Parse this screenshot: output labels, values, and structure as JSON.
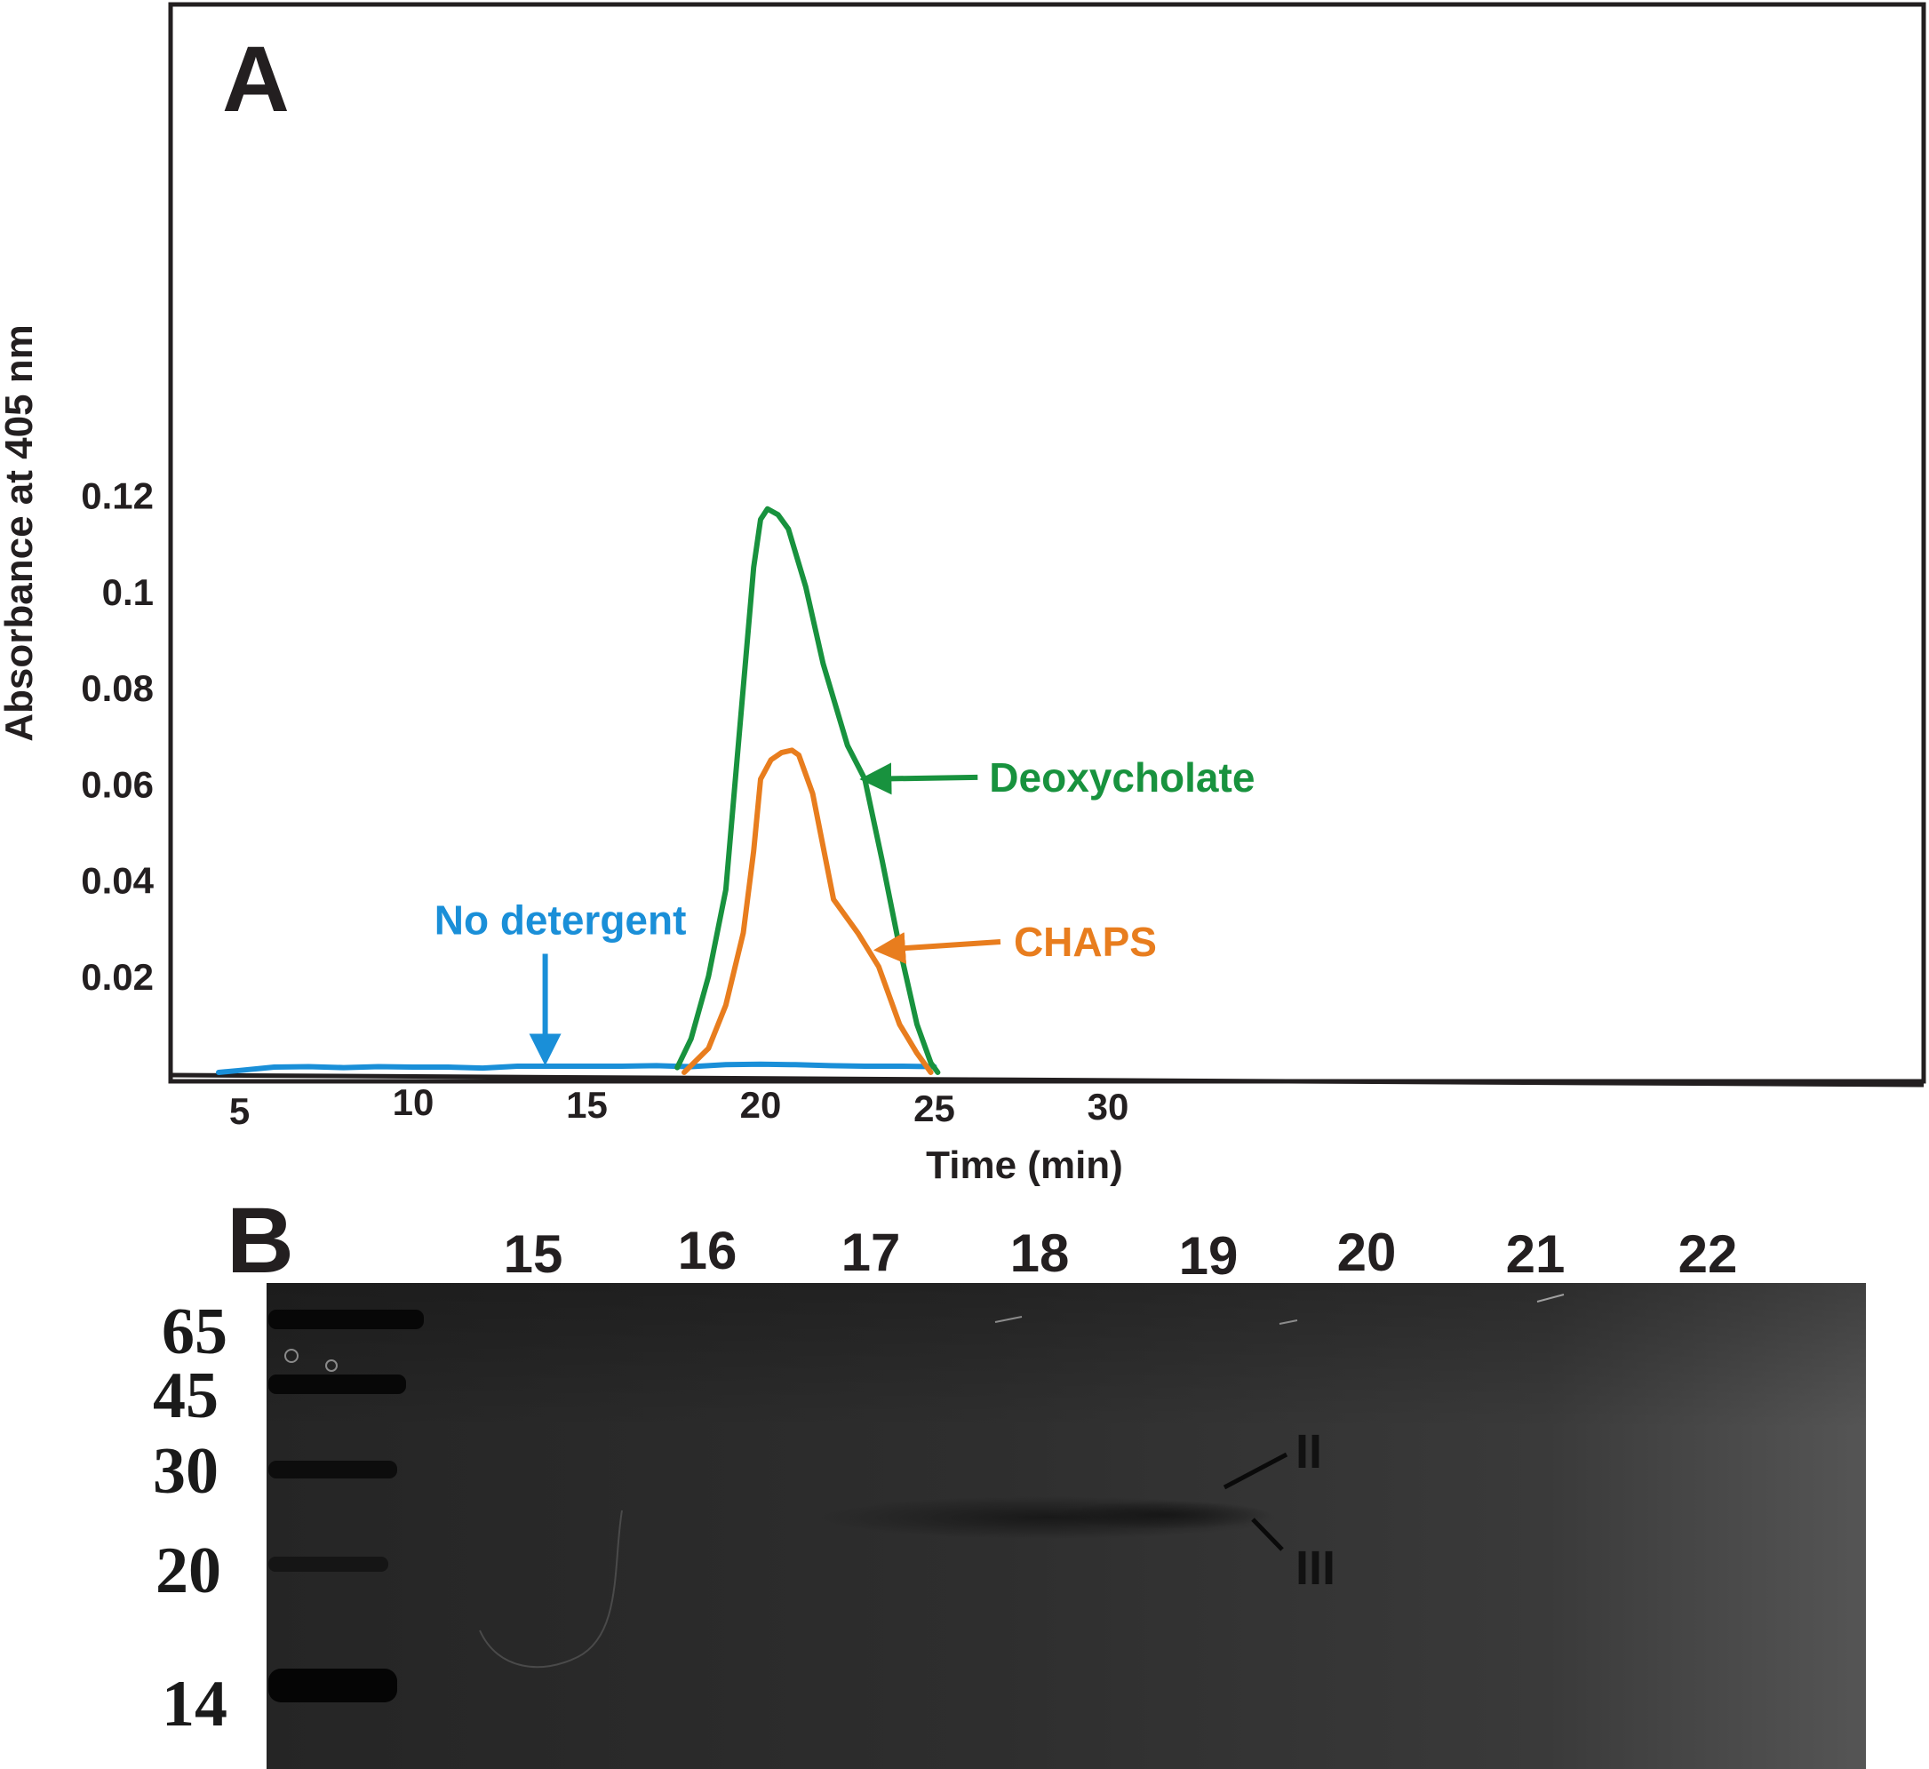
{
  "panels": {
    "a_label": "A",
    "b_label": "B"
  },
  "chart_data": {
    "type": "line",
    "title": "",
    "xlabel": "Time (min)",
    "ylabel": "Absorbance at 405 nm",
    "xlim": [
      0,
      35
    ],
    "ylim": [
      0,
      0.13
    ],
    "x_ticks": [
      "5",
      "10",
      "15",
      "20",
      "25",
      "30"
    ],
    "x_tick_values": [
      5,
      10,
      15,
      20,
      25,
      30
    ],
    "y_ticks": [
      "0.02",
      "0.04",
      "0.06",
      "0.08",
      "0.1",
      "0.12"
    ],
    "y_tick_values": [
      0.02,
      0.04,
      0.06,
      0.08,
      0.1,
      0.12
    ],
    "grid": false,
    "series": [
      {
        "name": "No detergent",
        "color": "#1a8fd8",
        "x": [
          4.4,
          5.0,
          6.0,
          7.0,
          8.0,
          9.0,
          10.0,
          11.0,
          12.0,
          13.0,
          14.0,
          15.0,
          16.0,
          17.0,
          17.5,
          18.0,
          19.0,
          20.0,
          21.0,
          22.0,
          23.0,
          24.0,
          25.0
        ],
        "y": [
          0.0,
          0.0004,
          0.0011,
          0.0012,
          0.001,
          0.0012,
          0.0011,
          0.0011,
          0.0009,
          0.0013,
          0.0013,
          0.0013,
          0.0013,
          0.0014,
          0.0013,
          0.0012,
          0.0016,
          0.0017,
          0.0016,
          0.0014,
          0.0013,
          0.0013,
          0.0012
        ]
      },
      {
        "name": "Deoxycholate",
        "color": "#18923e",
        "x": [
          17.6,
          18.0,
          18.5,
          19.0,
          19.5,
          19.8,
          20.0,
          20.2,
          20.5,
          20.8,
          21.3,
          21.8,
          22.5,
          23.0,
          23.5,
          24.0,
          24.5,
          24.9,
          25.1
        ],
        "y": [
          0.001,
          0.007,
          0.02,
          0.038,
          0.08,
          0.105,
          0.115,
          0.1172,
          0.116,
          0.113,
          0.101,
          0.085,
          0.068,
          0.061,
          0.044,
          0.026,
          0.01,
          0.002,
          0.0
        ]
      },
      {
        "name": "CHAPS",
        "color": "#e87d1e",
        "x": [
          17.8,
          18.5,
          19.0,
          19.5,
          19.8,
          20.0,
          20.3,
          20.6,
          20.9,
          21.1,
          21.5,
          22.1,
          22.8,
          23.4,
          24.0,
          24.5,
          24.9
        ],
        "y": [
          0.0,
          0.005,
          0.014,
          0.029,
          0.046,
          0.061,
          0.065,
          0.0665,
          0.067,
          0.066,
          0.058,
          0.036,
          0.029,
          0.022,
          0.01,
          0.004,
          0.0
        ]
      }
    ],
    "annotations": [
      {
        "text": "No detergent",
        "target": "No detergent",
        "arrow_x": 13.8,
        "arrow_y": 0.0025
      },
      {
        "text": "Deoxycholate",
        "target": "Deoxycholate",
        "arrow_x": 23.0,
        "arrow_y": 0.061
      },
      {
        "text": "CHAPS",
        "target": "CHAPS",
        "arrow_x": 23.4,
        "arrow_y": 0.0255
      }
    ]
  },
  "gel": {
    "lane_labels": [
      "15",
      "16",
      "17",
      "18",
      "19",
      "20",
      "21",
      "22"
    ],
    "marker_labels": [
      "65",
      "45",
      "30",
      "20",
      "14"
    ],
    "band_labels": [
      "II",
      "III"
    ]
  }
}
